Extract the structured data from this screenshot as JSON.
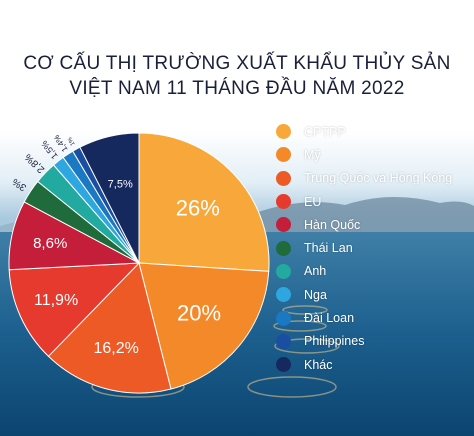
{
  "title_line1": "CƠ CẤU THỊ TRƯỜNG XUẤT KHẨU THỦY SẢN",
  "title_line2": "VIỆT NAM 11 THÁNG ĐẦU NĂM 2022",
  "chart_data": {
    "type": "pie",
    "title": "CƠ CẤU THỊ TRƯỜNG XUẤT KHẨU THỦY SẢN VIỆT NAM 11 THÁNG ĐẦU NĂM 2022",
    "legend_position": "right",
    "slices": [
      {
        "name": "CPTPP",
        "value": 26,
        "label": "26%",
        "color": "#f8a83a"
      },
      {
        "name": "Mỹ",
        "value": 20,
        "label": "20%",
        "color": "#f4892a"
      },
      {
        "name": "Trung Quốc và Hồng Kông",
        "value": 16.2,
        "label": "16,2%",
        "color": "#ee5a26"
      },
      {
        "name": "EU",
        "value": 11.9,
        "label": "11,9%",
        "color": "#e63a2e"
      },
      {
        "name": "Hàn Quốc",
        "value": 8.6,
        "label": "8,6%",
        "color": "#c41e3a"
      },
      {
        "name": "Thái Lan",
        "value": 3,
        "label": "3%",
        "color": "#1f6b3c"
      },
      {
        "name": "Anh",
        "value": 2.8,
        "label": "2,8%",
        "color": "#22aaa1"
      },
      {
        "name": "Nga",
        "value": 1.5,
        "label": "1,5%",
        "color": "#2ea6df"
      },
      {
        "name": "Đài Loan",
        "value": 1.4,
        "label": "1,4%",
        "color": "#1b78c2"
      },
      {
        "name": "Philippines",
        "value": 1,
        "label": "1%",
        "color": "#1a4ea0"
      },
      {
        "name": "Khác",
        "value": 7.5,
        "label": "7,5%",
        "color": "#16295e"
      }
    ]
  }
}
